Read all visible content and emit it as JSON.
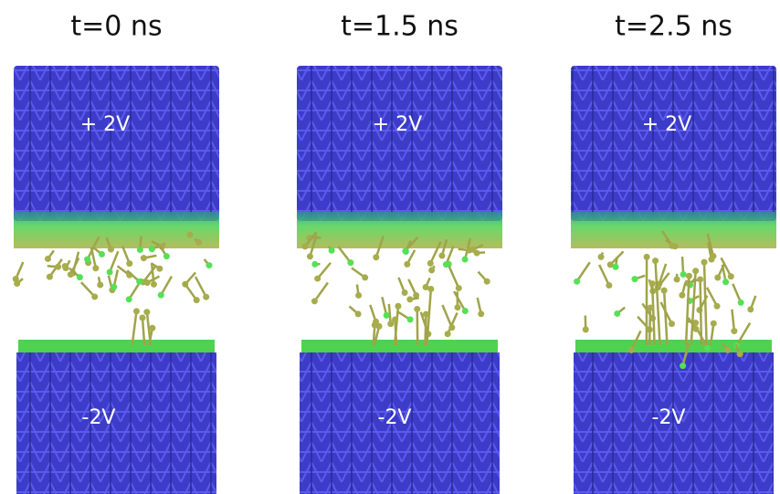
{
  "panels": [
    {
      "title": "t=0 ns",
      "top_label": "+ 2V",
      "bottom_label": "-2V"
    },
    {
      "title": "t=1.5 ns",
      "top_label": "+ 2V",
      "bottom_label": "-2V"
    },
    {
      "title": "t=2.5 ns",
      "top_label": "+ 2V",
      "bottom_label": "-2V"
    }
  ]
}
